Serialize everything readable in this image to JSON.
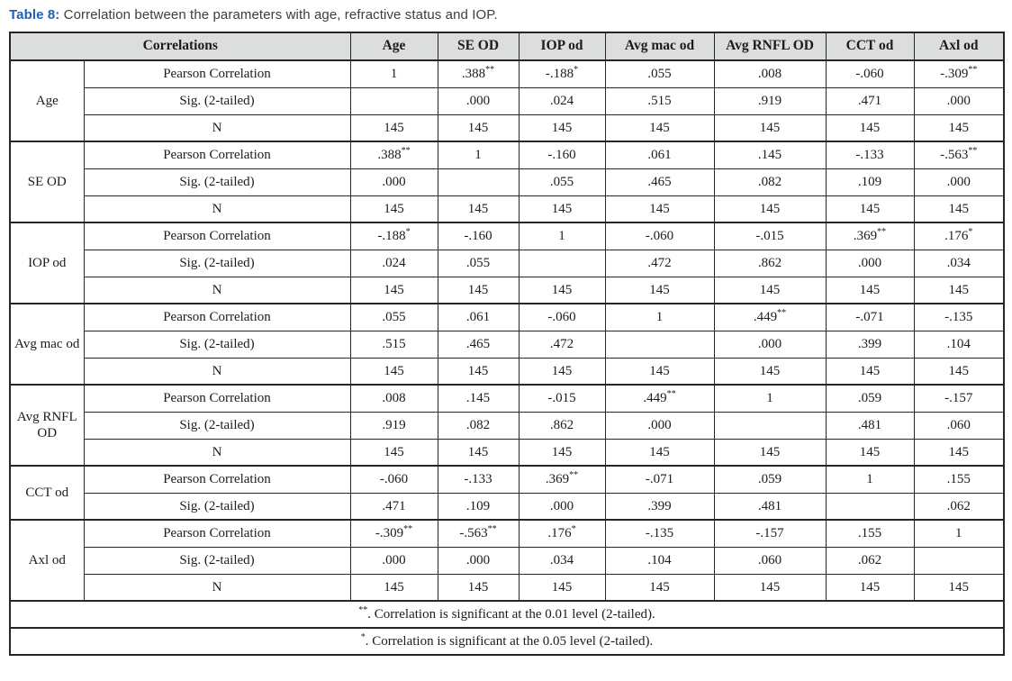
{
  "caption": {
    "label": "Table 8:",
    "text": " Correlation between the parameters with age, refractive status and IOP."
  },
  "colors": {
    "caption_accent": "#1f5fb2",
    "header_background": "#dcdedd",
    "border": "#262626",
    "text": "#1c1c1c"
  },
  "table": {
    "corner_header": "Correlations",
    "columns": [
      "Age",
      "SE OD",
      "IOP od",
      "Avg mac od",
      "Avg RNFL OD",
      "CCT od",
      "Axl od"
    ],
    "groups": [
      {
        "label": "Age",
        "rows": [
          {
            "stat": "Pearson Correlation",
            "values": [
              "1",
              ".388**",
              "-.188*",
              ".055",
              ".008",
              "-.060",
              "-.309**"
            ]
          },
          {
            "stat": "Sig. (2-tailed)",
            "values": [
              "",
              ".000",
              ".024",
              ".515",
              ".919",
              ".471",
              ".000"
            ]
          },
          {
            "stat": "N",
            "values": [
              "145",
              "145",
              "145",
              "145",
              "145",
              "145",
              "145"
            ]
          }
        ]
      },
      {
        "label": "SE OD",
        "rows": [
          {
            "stat": "Pearson Correlation",
            "values": [
              ".388**",
              "1",
              "-.160",
              ".061",
              ".145",
              "-.133",
              "-.563**"
            ]
          },
          {
            "stat": "Sig. (2-tailed)",
            "values": [
              ".000",
              "",
              ".055",
              ".465",
              ".082",
              ".109",
              ".000"
            ]
          },
          {
            "stat": "N",
            "values": [
              "145",
              "145",
              "145",
              "145",
              "145",
              "145",
              "145"
            ]
          }
        ]
      },
      {
        "label": "IOP od",
        "rows": [
          {
            "stat": "Pearson Correlation",
            "values": [
              "-.188*",
              "-.160",
              "1",
              "-.060",
              "-.015",
              ".369**",
              ".176*"
            ]
          },
          {
            "stat": "Sig. (2-tailed)",
            "values": [
              ".024",
              ".055",
              "",
              ".472",
              ".862",
              ".000",
              ".034"
            ]
          },
          {
            "stat": "N",
            "values": [
              "145",
              "145",
              "145",
              "145",
              "145",
              "145",
              "145"
            ]
          }
        ]
      },
      {
        "label": "Avg mac od",
        "rows": [
          {
            "stat": "Pearson Correlation",
            "values": [
              ".055",
              ".061",
              "-.060",
              "1",
              ".449**",
              "-.071",
              "-.135"
            ]
          },
          {
            "stat": "Sig. (2-tailed)",
            "values": [
              ".515",
              ".465",
              ".472",
              "",
              ".000",
              ".399",
              ".104"
            ]
          },
          {
            "stat": "N",
            "values": [
              "145",
              "145",
              "145",
              "145",
              "145",
              "145",
              "145"
            ]
          }
        ]
      },
      {
        "label": "Avg RNFL OD",
        "rows": [
          {
            "stat": "Pearson Correlation",
            "values": [
              ".008",
              ".145",
              "-.015",
              ".449**",
              "1",
              ".059",
              "-.157"
            ]
          },
          {
            "stat": "Sig. (2-tailed)",
            "values": [
              ".919",
              ".082",
              ".862",
              ".000",
              "",
              ".481",
              ".060"
            ]
          },
          {
            "stat": "N",
            "values": [
              "145",
              "145",
              "145",
              "145",
              "145",
              "145",
              "145"
            ]
          }
        ]
      },
      {
        "label": "CCT od",
        "rows": [
          {
            "stat": "Pearson Correlation",
            "values": [
              "-.060",
              "-.133",
              ".369**",
              "-.071",
              ".059",
              "1",
              ".155"
            ]
          },
          {
            "stat": "Sig. (2-tailed)",
            "values": [
              ".471",
              ".109",
              ".000",
              ".399",
              ".481",
              "",
              ".062"
            ]
          }
        ]
      },
      {
        "label": "Axl od",
        "rows": [
          {
            "stat": "Pearson Correlation",
            "values": [
              "-.309**",
              "-.563**",
              ".176*",
              "-.135",
              "-.157",
              ".155",
              "1"
            ]
          },
          {
            "stat": "Sig. (2-tailed)",
            "values": [
              ".000",
              ".000",
              ".034",
              ".104",
              ".060",
              ".062",
              ""
            ]
          },
          {
            "stat": "N",
            "values": [
              "145",
              "145",
              "145",
              "145",
              "145",
              "145",
              "145"
            ]
          }
        ]
      }
    ],
    "footnotes": [
      "**. Correlation is significant at the 0.01 level (2-tailed).",
      "*. Correlation is significant at the 0.05 level (2-tailed)."
    ]
  }
}
